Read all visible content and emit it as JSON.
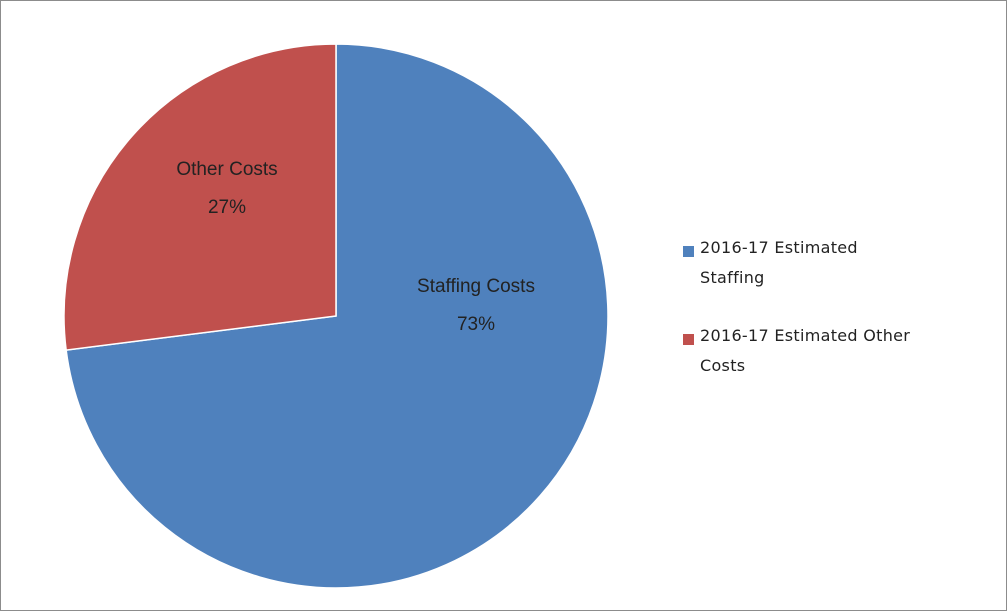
{
  "chart_data": {
    "type": "pie",
    "categories": [
      "2016-17 Estimated Staffing",
      "2016-17 Estimated Other Costs"
    ],
    "slice_labels": [
      "Staffing Costs",
      "Other Costs"
    ],
    "values": [
      73,
      27
    ],
    "value_labels": [
      "73%",
      "27%"
    ],
    "colors": [
      "#4f81bd",
      "#c0504d"
    ],
    "legend": "right"
  }
}
